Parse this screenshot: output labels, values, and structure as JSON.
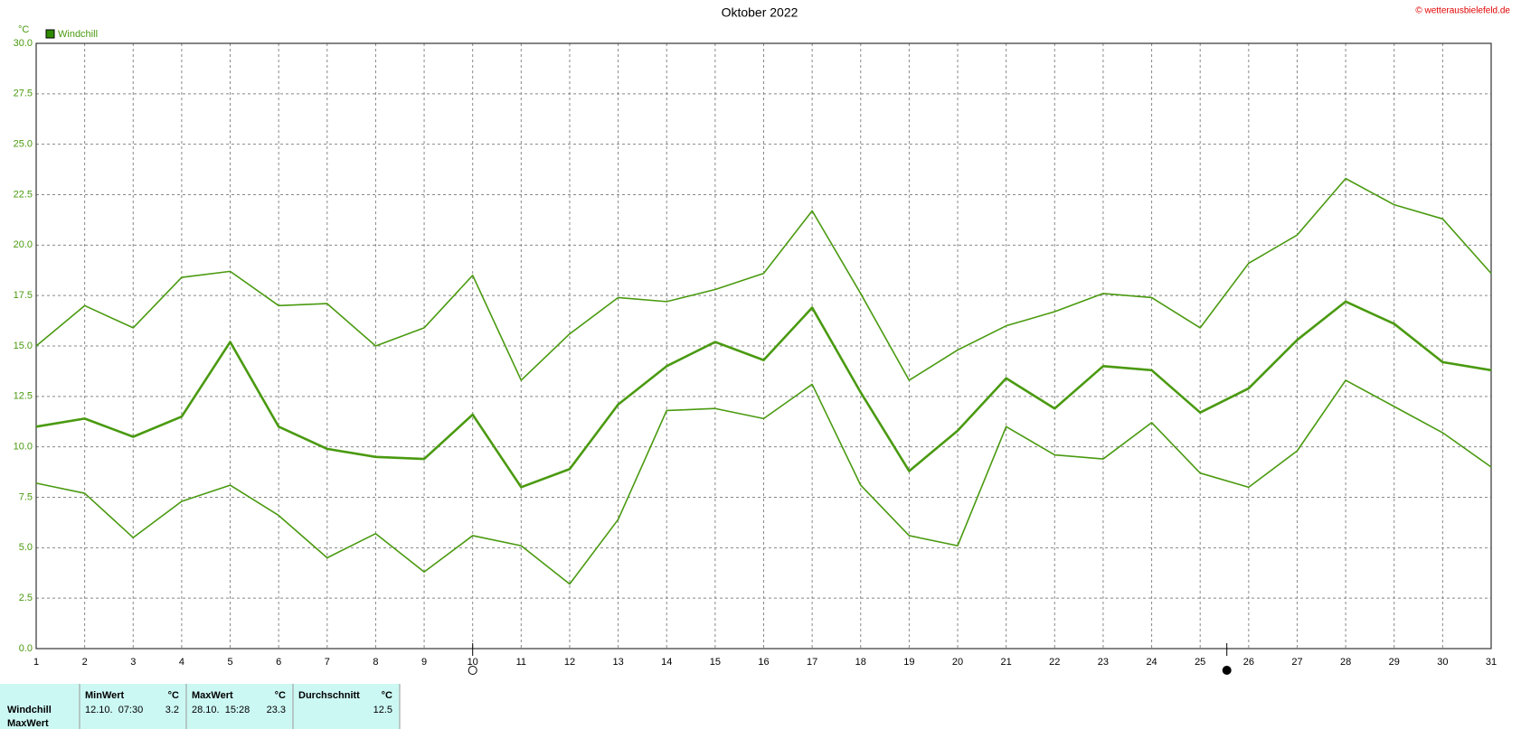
{
  "chart_data": {
    "type": "line",
    "title": "Oktober 2022",
    "credit": "© wetterausbielefeld.de",
    "y_unit": "°C",
    "legend_label": "Windchill",
    "legend_color": "#2e8b00",
    "x": [
      1,
      2,
      3,
      4,
      5,
      6,
      7,
      8,
      9,
      10,
      11,
      12,
      13,
      14,
      15,
      16,
      17,
      18,
      19,
      20,
      21,
      22,
      23,
      24,
      25,
      26,
      27,
      28,
      29,
      30,
      31
    ],
    "xlim": [
      1,
      31
    ],
    "xticks": [
      1,
      2,
      3,
      4,
      5,
      6,
      7,
      8,
      9,
      10,
      11,
      12,
      13,
      14,
      15,
      16,
      17,
      18,
      19,
      20,
      21,
      22,
      23,
      24,
      25,
      26,
      27,
      28,
      29,
      30,
      31
    ],
    "ylim": [
      0,
      30
    ],
    "yticks": [
      {
        "value": 0,
        "label": "0.0"
      },
      {
        "value": 2.5,
        "label": "2.5"
      },
      {
        "value": 5,
        "label": "5.0"
      },
      {
        "value": 7.5,
        "label": "7.5"
      },
      {
        "value": 10,
        "label": "10.0"
      },
      {
        "value": 12.5,
        "label": "12.5"
      },
      {
        "value": 15,
        "label": "15.0"
      },
      {
        "value": 17.5,
        "label": "17.5"
      },
      {
        "value": 20,
        "label": "20.0"
      },
      {
        "value": 22.5,
        "label": "22.5"
      },
      {
        "value": 25,
        "label": "25.0"
      },
      {
        "value": 27.5,
        "label": "27.5"
      },
      {
        "value": 30,
        "label": "30.0"
      }
    ],
    "grid": true,
    "series": [
      {
        "color": "#4a9a10",
        "width": 1.6,
        "values": [
          15.0,
          17.0,
          15.9,
          18.4,
          18.7,
          17.0,
          17.1,
          15.0,
          15.9,
          18.5,
          13.3,
          15.6,
          17.4,
          17.2,
          17.8,
          18.6,
          21.7,
          17.6,
          13.3,
          14.8,
          16.0,
          16.7,
          17.6,
          17.4,
          15.9,
          19.1,
          20.5,
          23.3,
          22.0,
          21.3,
          18.6
        ]
      },
      {
        "color": "#4a9a10",
        "width": 2.6,
        "values": [
          11.0,
          11.4,
          10.5,
          11.5,
          15.2,
          11.0,
          9.9,
          9.5,
          9.4,
          11.6,
          8.0,
          8.9,
          12.1,
          14.0,
          15.2,
          14.3,
          16.9,
          12.7,
          8.8,
          10.8,
          13.4,
          11.9,
          14.0,
          13.8,
          11.7,
          12.9,
          15.3,
          17.2,
          16.1,
          14.2,
          13.8
        ]
      },
      {
        "color": "#4a9a10",
        "width": 1.6,
        "values": [
          8.2,
          7.7,
          5.5,
          7.3,
          8.1,
          6.6,
          4.5,
          5.7,
          3.8,
          5.6,
          5.1,
          3.2,
          6.4,
          11.8,
          11.9,
          11.4,
          13.1,
          8.1,
          5.6,
          5.1,
          11.0,
          9.6,
          9.4,
          11.2,
          8.7,
          8.0,
          9.8,
          13.3,
          12.0,
          10.7,
          9.0
        ]
      }
    ],
    "full_moon_x": 10,
    "new_moon_x": 25.55
  },
  "table": {
    "columns": [
      "MinWert",
      "°C",
      "MaxWert",
      "°C",
      "Durchschnitt",
      "°C"
    ],
    "rows": [
      [
        "Windchill",
        "12.10.  07:30",
        "3.2",
        "28.10.  15:28",
        "23.3",
        "12.5"
      ],
      [
        "MaxWert"
      ]
    ]
  }
}
